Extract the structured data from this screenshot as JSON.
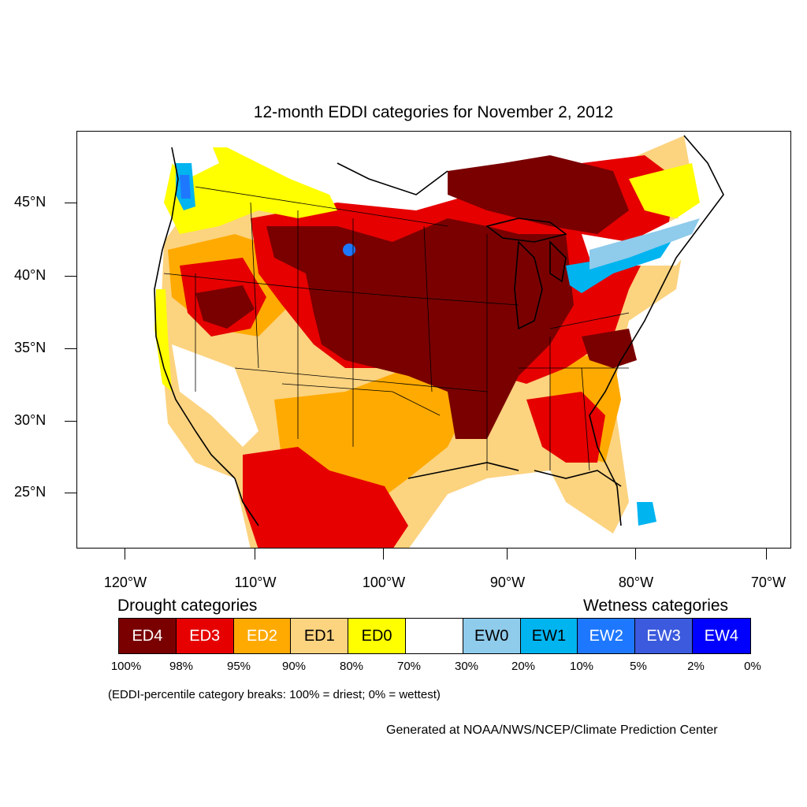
{
  "title": "12-month EDDI categories for November 2, 2012",
  "axes": {
    "lat_labels": [
      "45°N",
      "40°N",
      "35°N",
      "30°N",
      "25°N"
    ],
    "lon_labels": [
      "120°W",
      "110°W",
      "100°W",
      "90°W",
      "80°W",
      "70°W"
    ]
  },
  "legend": {
    "drought_heading": "Drought categories",
    "wetness_heading": "Wetness categories",
    "categories": [
      {
        "label": "ED4",
        "color": "#7a0000",
        "text_color": "#ffffff"
      },
      {
        "label": "ED3",
        "color": "#e60000",
        "text_color": "#ffffff"
      },
      {
        "label": "ED2",
        "color": "#ffaa00",
        "text_color": "#ffffff"
      },
      {
        "label": "ED1",
        "color": "#fcd37f",
        "text_color": "#000000"
      },
      {
        "label": "ED0",
        "color": "#ffff00",
        "text_color": "#000000"
      },
      {
        "label": "",
        "color": "#ffffff",
        "text_color": "#000000"
      },
      {
        "label": "EW0",
        "color": "#8fcbeb",
        "text_color": "#000000"
      },
      {
        "label": "EW1",
        "color": "#00b4f0",
        "text_color": "#000000"
      },
      {
        "label": "EW2",
        "color": "#1e78ff",
        "text_color": "#ffffff"
      },
      {
        "label": "EW3",
        "color": "#3c5ade",
        "text_color": "#ffffff"
      },
      {
        "label": "EW4",
        "color": "#0000ff",
        "text_color": "#ffffff"
      }
    ],
    "breaks": [
      "100%",
      "98%",
      "95%",
      "90%",
      "80%",
      "70%",
      "30%",
      "20%",
      "10%",
      "5%",
      "2%",
      "0%"
    ]
  },
  "note": "(EDDI-percentile category breaks: 100% = driest; 0% = wettest)",
  "credit": "Generated at NOAA/NWS/NCEP/Climate Prediction Center"
}
